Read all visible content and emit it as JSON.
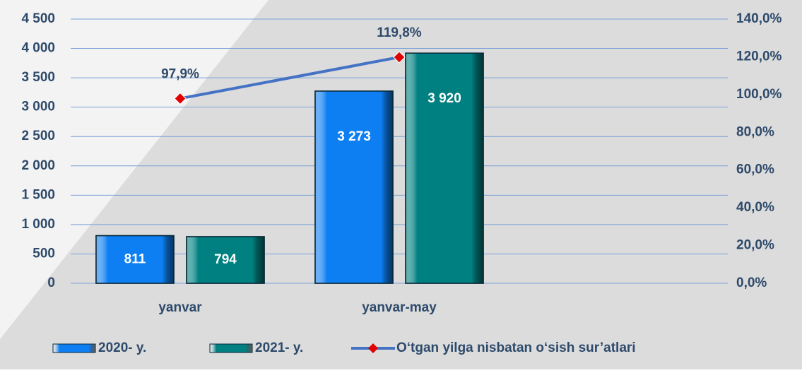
{
  "chart_data": {
    "type": "bar",
    "categories": [
      "yanvar",
      "yanvar-may",
      null
    ],
    "series": [
      {
        "name": "2020- y.",
        "color": "#0d7ff2",
        "values": [
          811,
          3273,
          null
        ],
        "value_labels": [
          "811",
          "3 273",
          null
        ]
      },
      {
        "name": "2021- y.",
        "color": "#008080",
        "values": [
          794,
          3920,
          null
        ],
        "value_labels": [
          "794",
          "3 920",
          null
        ]
      },
      {
        "name": "O‘tgan yilga nisbatan o‘sish sur’atlari",
        "type": "line",
        "axis": "y2",
        "color": "#4472c4",
        "marker_color": "#e00000",
        "values": [
          97.9,
          119.8,
          null
        ],
        "value_labels": [
          "97,9%",
          "119,8%",
          null
        ]
      }
    ],
    "ylim": [
      0,
      4500
    ],
    "yticks": [
      0,
      500,
      {
        "value": 1000,
        "label": "1 000"
      },
      {
        "value": 1500,
        "label": "1 500"
      },
      {
        "value": 2000,
        "label": "2 000"
      },
      {
        "value": 2500,
        "label": "2 500"
      },
      {
        "value": 3000,
        "label": "3 000"
      },
      {
        "value": 3500,
        "label": "3 500"
      },
      {
        "value": 4000,
        "label": "4 000"
      },
      {
        "value": 4500,
        "label": "4 500"
      }
    ],
    "y2lim": [
      0,
      140
    ],
    "y2ticks": [
      {
        "value": 0,
        "label": "0,0%"
      },
      {
        "value": 20,
        "label": "20,0%"
      },
      {
        "value": 40,
        "label": "40,0%"
      },
      {
        "value": 60,
        "label": "60,0%"
      },
      {
        "value": 80,
        "label": "80,0%"
      },
      {
        "value": 100,
        "label": "100,0%"
      },
      {
        "value": 120,
        "label": "120,0%"
      },
      {
        "value": 140,
        "label": "140,0%"
      }
    ],
    "grid": true,
    "legend": "bottom"
  }
}
